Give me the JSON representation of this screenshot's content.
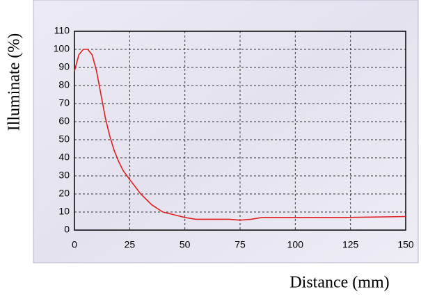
{
  "chart_data": {
    "type": "line",
    "x_label": "Distance (mm)",
    "y_label": "Illuminate (%)",
    "x": [
      0,
      2,
      4,
      6,
      8,
      10,
      12,
      14,
      16,
      18,
      20,
      22,
      25,
      30,
      35,
      40,
      45,
      50,
      55,
      60,
      70,
      75,
      80,
      85,
      100,
      125,
      150
    ],
    "series": [
      {
        "color": "#e02020",
        "values": [
          88,
          97,
          100,
          100,
          97,
          88,
          75,
          62,
          52,
          44,
          38,
          33,
          28,
          20,
          14,
          10,
          8.5,
          7,
          6,
          6,
          6,
          5.5,
          6,
          7,
          7,
          7,
          7.5
        ]
      }
    ],
    "xlim": [
      0,
      150
    ],
    "xticks": [
      0,
      25,
      50,
      75,
      100,
      125,
      150
    ],
    "ylim": [
      0,
      110
    ],
    "yticks": [
      0,
      10,
      20,
      30,
      40,
      50,
      60,
      70,
      80,
      90,
      100,
      110
    ],
    "grid": true
  }
}
